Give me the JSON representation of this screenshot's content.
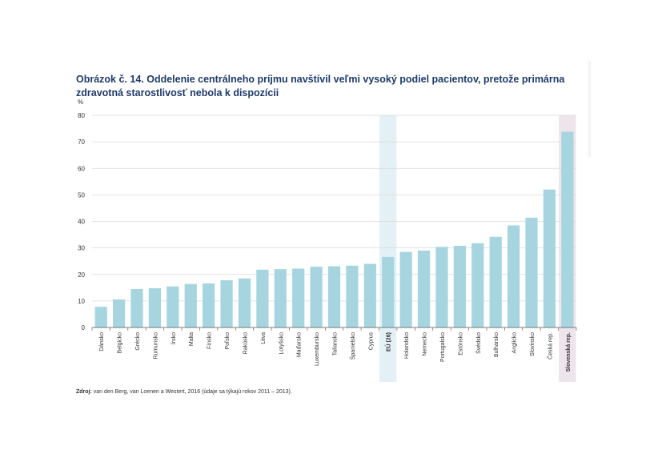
{
  "title": "Obrázok č. 14. Oddelenie centrálneho príjmu navštívil veľmi vysoký podiel pacientov, pretože primárna zdravotná starostlivosť nebola k dispozícii",
  "source": {
    "label": "Zdroj:",
    "text": " van den Berg, van Loenen a Westert, 2016 (údaje sa týkajú rokov 2011 – 2013)."
  },
  "colors": {
    "bar": "#a7d5df",
    "eu_highlight": "#e3f1f6",
    "sk_highlight": "#eee4ec",
    "grid": "#d9d9d9",
    "axis": "#555555",
    "title": "#1f3a6a"
  },
  "chart_data": {
    "type": "bar",
    "title": "Obrázok č. 14. Oddelenie centrálneho príjmu navštívil veľmi vysoký podiel pacientov, pretože primárna zdravotná starostlivosť nebola k dispozícii",
    "ylabel": "%",
    "xlabel": "",
    "ylim": [
      0,
      80
    ],
    "yticks": [
      0,
      10,
      20,
      30,
      40,
      50,
      60,
      70,
      80
    ],
    "grid": true,
    "categories": [
      "Dánsko",
      "Belgicko",
      "Grécko",
      "Rumunsko",
      "Írsko",
      "Malta",
      "Fínsko",
      "Poľsko",
      "Rakúsko",
      "Litva",
      "Lotyšsko",
      "Maďarsko",
      "Luxembursko",
      "Taliansko",
      "Španielsko",
      "Cyprus",
      "EÚ (26)",
      "Holandsko",
      "Nemecko",
      "Portugalsko",
      "Estónsko",
      "Švédsko",
      "Bulharsko",
      "Anglicko",
      "Slovinsko",
      "Česká rep.",
      "Slovenská rep."
    ],
    "values": [
      7.8,
      10.6,
      14.5,
      14.8,
      15.5,
      16.4,
      16.6,
      17.8,
      18.5,
      21.8,
      22.0,
      22.2,
      22.9,
      23.1,
      23.3,
      24.0,
      26.6,
      28.5,
      29.0,
      30.4,
      30.8,
      31.8,
      34.2,
      38.5,
      41.4,
      52.0,
      73.8
    ],
    "highlighted": [
      "EÚ (26)",
      "Slovenská rep."
    ],
    "bold_labels": [
      "EÚ (26)",
      "Slovenská rep."
    ]
  }
}
